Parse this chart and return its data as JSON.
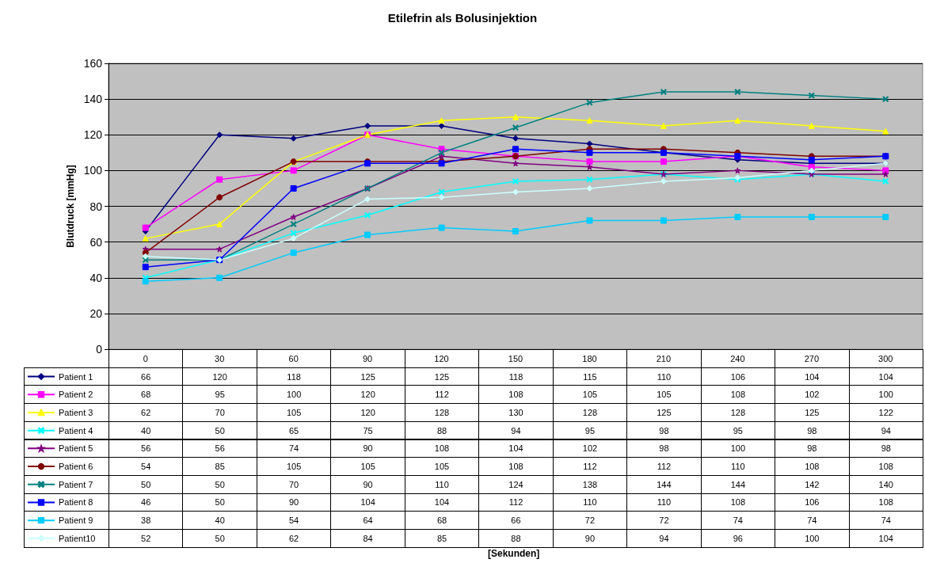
{
  "chart_data": {
    "type": "line",
    "title": "Etilefrin als Bolusinjektion",
    "annotations": [
      "[Sekunden]"
    ],
    "ylabel": "Blutdruck [mmHg]",
    "categories": [
      "0",
      "30",
      "60",
      "90",
      "120",
      "150",
      "180",
      "210",
      "240",
      "270",
      "300"
    ],
    "ylim": [
      0,
      160
    ],
    "yticks": [
      0,
      20,
      40,
      60,
      80,
      100,
      120,
      140,
      160
    ],
    "grid": "y",
    "legend": "bottom left",
    "data_labels": true,
    "series": [
      {
        "name": "Patient 1",
        "color": "#000080",
        "marker": "diamond",
        "values": [
          66,
          120,
          118,
          125,
          125,
          118,
          115,
          110,
          106,
          104,
          104
        ]
      },
      {
        "name": "Patient 2",
        "color": "#ff00ff",
        "marker": "square",
        "values": [
          68,
          95,
          100,
          120,
          112,
          108,
          105,
          105,
          108,
          102,
          100
        ]
      },
      {
        "name": "Patient 3",
        "color": "#ffff00",
        "marker": "triangle",
        "values": [
          62,
          70,
          105,
          120,
          128,
          130,
          128,
          125,
          128,
          125,
          122
        ]
      },
      {
        "name": "Patient 4",
        "color": "#00ffff",
        "marker": "cross",
        "values": [
          40,
          50,
          65,
          75,
          88,
          94,
          95,
          98,
          95,
          98,
          94
        ]
      },
      {
        "name": "Patient 5",
        "color": "#800080",
        "marker": "star",
        "values": [
          56,
          56,
          74,
          90,
          108,
          104,
          102,
          98,
          100,
          98,
          98
        ]
      },
      {
        "name": "Patient 6",
        "color": "#800000",
        "marker": "circle",
        "values": [
          54,
          85,
          105,
          105,
          105,
          108,
          112,
          112,
          110,
          108,
          108
        ]
      },
      {
        "name": "Patient 7",
        "color": "#008080",
        "marker": "cross",
        "values": [
          50,
          50,
          70,
          90,
          110,
          124,
          138,
          144,
          144,
          142,
          140
        ]
      },
      {
        "name": "Patient 8",
        "color": "#0000ff",
        "marker": "square",
        "values": [
          46,
          50,
          90,
          104,
          104,
          112,
          110,
          110,
          108,
          106,
          108
        ]
      },
      {
        "name": "Patient 9",
        "color": "#00ccff",
        "marker": "square",
        "values": [
          38,
          40,
          54,
          64,
          68,
          66,
          72,
          72,
          74,
          74,
          74
        ]
      },
      {
        "name": "Patient10",
        "color": "#ccffff",
        "marker": "diamond",
        "values": [
          52,
          50,
          62,
          84,
          85,
          88,
          90,
          94,
          96,
          100,
          104
        ]
      }
    ]
  }
}
